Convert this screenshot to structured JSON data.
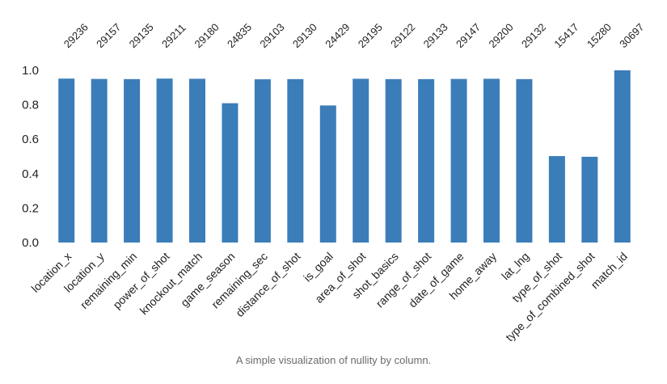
{
  "caption": "A simple visualization of nullity by column.",
  "colors": {
    "bar": "#3b7db8",
    "text": "#222222",
    "caption": "#6b6b6b"
  },
  "chart_data": {
    "type": "bar",
    "title": "",
    "xlabel": "",
    "ylabel": "",
    "ylim": [
      0,
      1.0
    ],
    "yticks": [
      "0.0",
      "0.2",
      "0.4",
      "0.6",
      "0.8",
      "1.0"
    ],
    "grid": false,
    "total_rows": 30697,
    "categories": [
      "location_x",
      "location_y",
      "remaining_min",
      "power_of_shot",
      "knockout_match",
      "game_season",
      "remaining_sec",
      "distance_of_shot",
      "is_goal",
      "area_of_shot",
      "shot_basics",
      "range_of_shot",
      "date_of_game",
      "home_away",
      "lat_lng",
      "type_of_shot",
      "type_of_combined_shot",
      "match_id"
    ],
    "counts": [
      29236,
      29157,
      29135,
      29211,
      29180,
      24835,
      29103,
      29130,
      24429,
      29195,
      29122,
      29133,
      29147,
      29200,
      29132,
      15417,
      15280,
      30697
    ],
    "values": [
      0.952,
      0.95,
      0.949,
      0.952,
      0.951,
      0.809,
      0.948,
      0.949,
      0.796,
      0.951,
      0.949,
      0.949,
      0.95,
      0.951,
      0.949,
      0.502,
      0.498,
      1.0
    ]
  }
}
